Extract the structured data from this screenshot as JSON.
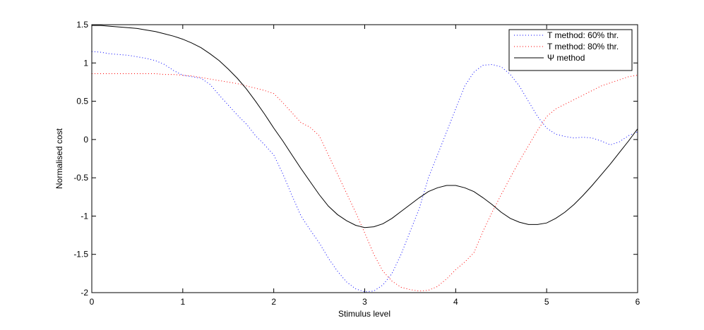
{
  "chart_data": {
    "type": "line",
    "title": "",
    "xlabel": "Stimulus level",
    "ylabel": "Normalised cost",
    "xlim": [
      0,
      6
    ],
    "ylim": [
      -2,
      1.5
    ],
    "xticks": [
      "0",
      "1",
      "2",
      "3",
      "4",
      "5",
      "6"
    ],
    "yticks": [
      "-2",
      "-1.5",
      "-1",
      "-0.5",
      "0",
      "0.5",
      "1",
      "1.5"
    ],
    "grid": false,
    "legend_position": "top-right",
    "x": [
      0,
      0.1,
      0.2,
      0.3,
      0.4,
      0.5,
      0.6,
      0.7,
      0.8,
      0.9,
      1.0,
      1.1,
      1.2,
      1.3,
      1.4,
      1.5,
      1.6,
      1.7,
      1.8,
      1.9,
      2.0,
      2.1,
      2.2,
      2.3,
      2.4,
      2.5,
      2.6,
      2.7,
      2.8,
      2.9,
      3.0,
      3.1,
      3.2,
      3.3,
      3.4,
      3.5,
      3.6,
      3.7,
      3.8,
      3.9,
      4.0,
      4.1,
      4.2,
      4.3,
      4.4,
      4.5,
      4.6,
      4.7,
      4.8,
      4.9,
      5.0,
      5.1,
      5.2,
      5.3,
      5.4,
      5.5,
      5.6,
      5.7,
      5.8,
      5.9,
      6.0
    ],
    "series": [
      {
        "name": "T method: 60% thr.",
        "color": "#0000ff",
        "style": "dotted",
        "values": [
          1.15,
          1.14,
          1.12,
          1.11,
          1.1,
          1.08,
          1.06,
          1.03,
          0.98,
          0.9,
          0.84,
          0.82,
          0.8,
          0.72,
          0.58,
          0.45,
          0.32,
          0.2,
          0.05,
          -0.07,
          -0.2,
          -0.45,
          -0.73,
          -1.0,
          -1.18,
          -1.35,
          -1.55,
          -1.72,
          -1.86,
          -1.95,
          -1.99,
          -1.98,
          -1.9,
          -1.75,
          -1.5,
          -1.2,
          -0.9,
          -0.5,
          -0.2,
          0.1,
          0.4,
          0.7,
          0.88,
          0.97,
          0.98,
          0.95,
          0.85,
          0.7,
          0.5,
          0.3,
          0.15,
          0.07,
          0.04,
          0.02,
          0.03,
          0.02,
          -0.02,
          -0.07,
          -0.03,
          0.05,
          0.1
        ]
      },
      {
        "name": "T method: 80% thr.",
        "color": "#ff0000",
        "style": "dotted",
        "values": [
          0.86,
          0.86,
          0.86,
          0.86,
          0.86,
          0.86,
          0.86,
          0.86,
          0.85,
          0.85,
          0.84,
          0.83,
          0.81,
          0.79,
          0.77,
          0.75,
          0.73,
          0.7,
          0.67,
          0.64,
          0.6,
          0.48,
          0.35,
          0.22,
          0.16,
          0.05,
          -0.2,
          -0.45,
          -0.7,
          -0.95,
          -1.22,
          -1.5,
          -1.72,
          -1.85,
          -1.93,
          -1.96,
          -1.98,
          -1.97,
          -1.92,
          -1.82,
          -1.7,
          -1.6,
          -1.48,
          -1.2,
          -0.95,
          -0.72,
          -0.5,
          -0.28,
          -0.08,
          0.12,
          0.3,
          0.4,
          0.46,
          0.52,
          0.58,
          0.64,
          0.7,
          0.74,
          0.78,
          0.82,
          0.84
        ]
      },
      {
        "name": "Ψ method",
        "color": "#000000",
        "style": "solid",
        "values": [
          1.49,
          1.49,
          1.48,
          1.47,
          1.46,
          1.45,
          1.43,
          1.41,
          1.38,
          1.35,
          1.31,
          1.26,
          1.2,
          1.12,
          1.03,
          0.92,
          0.8,
          0.66,
          0.5,
          0.33,
          0.15,
          -0.02,
          -0.2,
          -0.38,
          -0.55,
          -0.72,
          -0.87,
          -0.98,
          -1.06,
          -1.12,
          -1.15,
          -1.14,
          -1.1,
          -1.03,
          -0.94,
          -0.85,
          -0.76,
          -0.68,
          -0.63,
          -0.6,
          -0.6,
          -0.63,
          -0.68,
          -0.76,
          -0.85,
          -0.95,
          -1.03,
          -1.08,
          -1.11,
          -1.11,
          -1.09,
          -1.03,
          -0.95,
          -0.85,
          -0.73,
          -0.6,
          -0.46,
          -0.32,
          -0.17,
          -0.02,
          0.14
        ]
      }
    ]
  }
}
